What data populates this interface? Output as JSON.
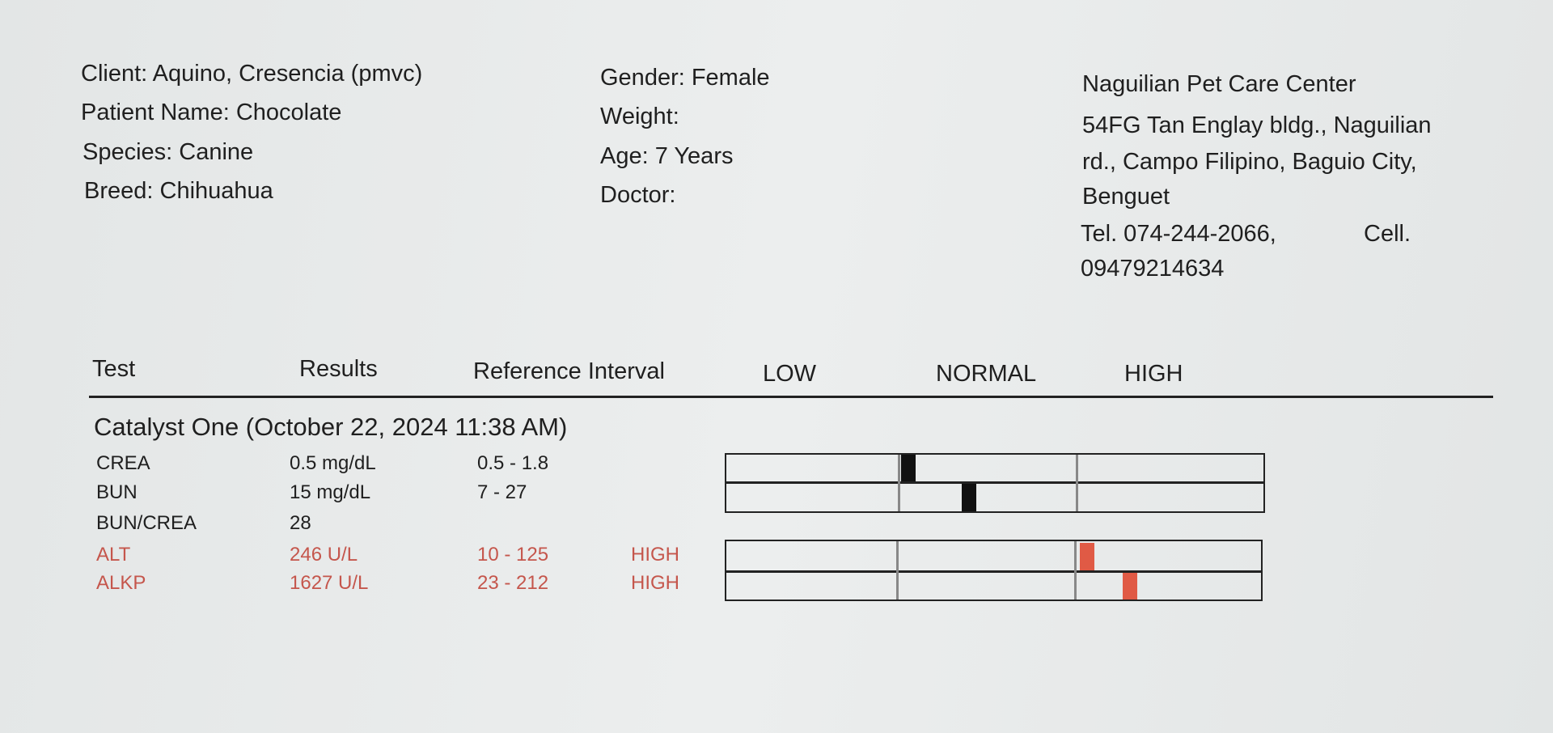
{
  "patient": {
    "client": "Client: Aquino, Cresencia (pmvc)",
    "patient_name": "Patient Name: Chocolate",
    "species": "Species: Canine",
    "breed": "Breed: Chihuahua",
    "gender": "Gender: Female",
    "weight": "Weight:",
    "age": "Age: 7 Years",
    "doctor": "Doctor:"
  },
  "clinic": {
    "lines": [
      "Naguilian Pet Care Center",
      "54FG Tan Englay bldg., Naguilian",
      "rd., Campo Filipino, Baguio City,",
      "Benguet",
      "Tel. 074-244-2066,",
      "09479214634"
    ],
    "cell": "Cell."
  },
  "table": {
    "headers": [
      "Test",
      "Results",
      "Reference Interval",
      "LOW",
      "NORMAL",
      "HIGH"
    ],
    "section": "Catalyst One (October 22, 2024 11:38 AM)",
    "rows": [
      [
        "CREA",
        "0.5 mg/dL",
        "0.5 - 1.8",
        ""
      ],
      [
        "BUN",
        "15 mg/dL",
        "7 - 27",
        ""
      ],
      [
        "BUN/CREA",
        "28",
        "",
        ""
      ],
      [
        "ALT",
        "246 U/L",
        "10 - 125",
        "HIGH"
      ],
      [
        "ALKP",
        "1627 U/L",
        "23 - 212",
        "HIGH"
      ]
    ]
  }
}
